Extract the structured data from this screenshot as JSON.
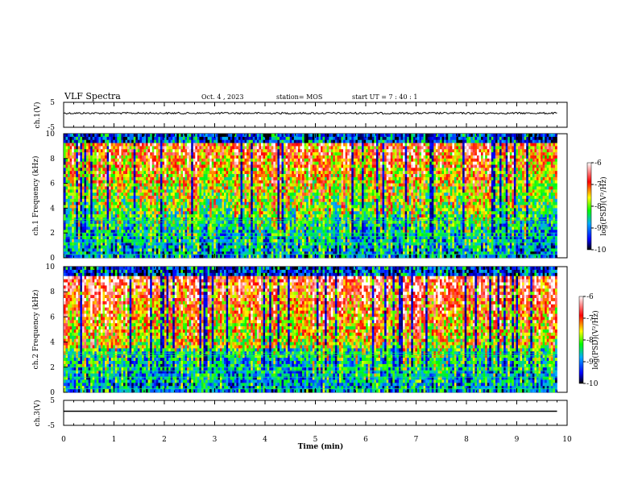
{
  "header": {
    "title": "VLF Spectra",
    "date": "Oct. 4 , 2023",
    "station": "station= MOS",
    "start_ut": "start UT =  7 : 40 : 1"
  },
  "chart_data": [
    {
      "type": "line",
      "panel": "ch1-waveform",
      "ylabel": "ch.1(V)",
      "ylim": [
        -5,
        5
      ],
      "yticks": [
        "5",
        "-5"
      ],
      "x": [
        0,
        10
      ],
      "values": [
        0,
        0
      ],
      "xlim": [
        0,
        10
      ]
    },
    {
      "type": "heatmap",
      "panel": "ch1-spectrogram",
      "ylabel": "ch.1 Frequency (kHz)",
      "ylim": [
        0,
        10
      ],
      "yticks": [
        "0",
        "2",
        "4",
        "6",
        "8",
        "10"
      ],
      "xlim": [
        0,
        10
      ],
      "data_end_min": 9.8,
      "colorbar": {
        "label": "log(PSD)(V²/Hz)",
        "range": [
          -10,
          -6
        ],
        "ticks": [
          "-6",
          "-7",
          "-8",
          "-9",
          "-10"
        ]
      }
    },
    {
      "type": "heatmap",
      "panel": "ch2-spectrogram",
      "ylabel": "ch.2 Frequency (kHz)",
      "ylim": [
        0,
        10
      ],
      "yticks": [
        "0",
        "2",
        "4",
        "6",
        "8",
        "10"
      ],
      "xlim": [
        0,
        10
      ],
      "data_end_min": 9.8,
      "colorbar": {
        "label": "log(PSD)(V²/Hz)",
        "range": [
          -10,
          -6
        ],
        "ticks": [
          "-6",
          "-7",
          "-8",
          "-9",
          "-10"
        ]
      }
    },
    {
      "type": "line",
      "panel": "ch3-waveform",
      "ylabel": "ch.3(V)",
      "ylim": [
        -5,
        5
      ],
      "yticks": [
        "5",
        "-5"
      ],
      "x": [
        0,
        10
      ],
      "values": [
        0,
        0
      ],
      "xlim": [
        0,
        10
      ]
    }
  ],
  "xaxis": {
    "label": "Time (min)",
    "ticks": [
      "0",
      "1",
      "2",
      "3",
      "4",
      "5",
      "6",
      "7",
      "8",
      "9",
      "10"
    ]
  },
  "colors": {
    "spectrum_low": "#000000",
    "spectrum_mid_low": "#0000ff",
    "spectrum_mid": "#00ff00",
    "spectrum_mid_high": "#ff0000",
    "spectrum_high": "#ffffff"
  }
}
